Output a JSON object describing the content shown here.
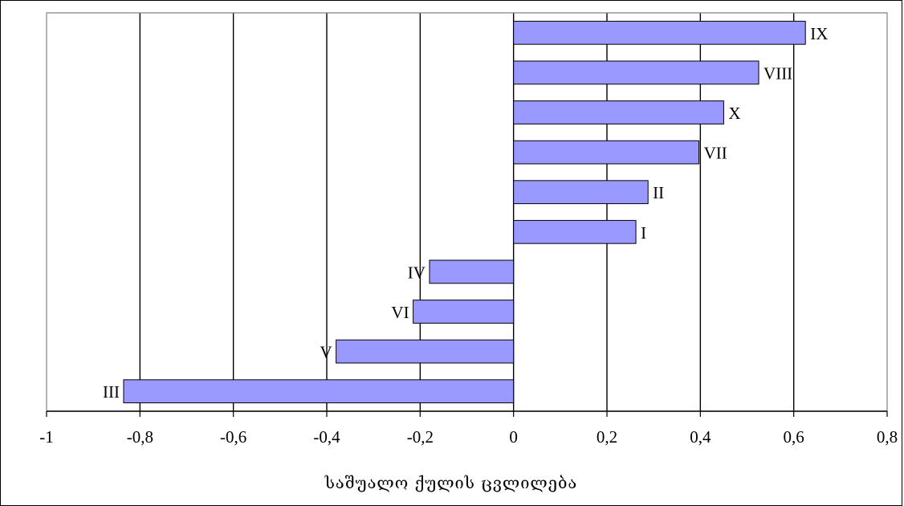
{
  "chart_data": {
    "type": "bar",
    "orientation": "horizontal",
    "categories": [
      "IX",
      "VIII",
      "X",
      "VII",
      "II",
      "I",
      "IV",
      "VI",
      "V",
      "III"
    ],
    "values": [
      0.625,
      0.525,
      0.45,
      0.397,
      0.288,
      0.262,
      -0.18,
      -0.215,
      -0.38,
      -0.835
    ],
    "bar_color": "#9999ff",
    "bar_border_color": "#000000",
    "xlim": [
      -1,
      0.8
    ],
    "xticks": [
      -1,
      -0.8,
      -0.6,
      -0.4,
      -0.2,
      0,
      0.2,
      0.4,
      0.6,
      0.8
    ],
    "xtick_labels": [
      "-1",
      "-0,8",
      "-0,6",
      "-0,4",
      "-0,2",
      "0",
      "0,2",
      "0,4",
      "0,6",
      "0,8"
    ],
    "xlabel": "საშუალო ქულის ცვლილება",
    "ylabel": "",
    "title": "",
    "grid": "vertical",
    "legend": "none"
  }
}
